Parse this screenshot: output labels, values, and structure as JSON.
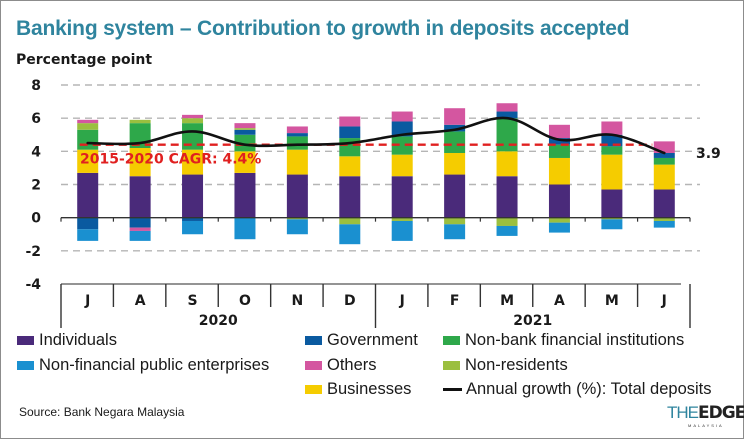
{
  "header": {
    "title": "Banking system – Contribution to growth in deposits accepted",
    "unit_label": "Percentage point"
  },
  "chart_data": {
    "type": "bar",
    "stacked": true,
    "title": "Banking system – Contribution to growth in deposits accepted",
    "ylabel": "Percentage point",
    "xlabel": "",
    "ylim": [
      -4,
      8
    ],
    "yticks": [
      "8",
      "6",
      "4",
      "2",
      "0",
      "-2",
      "-4"
    ],
    "ytick_values": [
      8,
      6,
      4,
      2,
      0,
      -2,
      -4
    ],
    "grid": true,
    "categories": [
      "J",
      "A",
      "S",
      "O",
      "N",
      "D",
      "J",
      "F",
      "M",
      "A",
      "M",
      "J"
    ],
    "year_groups": [
      {
        "label": "2020",
        "span": 6
      },
      {
        "label": "2021",
        "span": 6
      }
    ],
    "series": [
      {
        "name": "Individuals",
        "key": "individuals",
        "color": "#4a2a7a",
        "values": [
          2.7,
          2.5,
          2.6,
          2.7,
          2.6,
          2.5,
          2.5,
          2.6,
          2.5,
          2.0,
          1.7,
          1.7
        ]
      },
      {
        "name": "Businesses",
        "key": "businesses",
        "color": "#f5cc00",
        "values": [
          1.4,
          1.7,
          1.5,
          1.3,
          1.5,
          1.2,
          1.3,
          1.3,
          1.5,
          1.6,
          2.1,
          1.5
        ]
      },
      {
        "name": "Non-bank financial institutions",
        "key": "nbfi",
        "color": "#2ea84a",
        "values": [
          1.2,
          1.5,
          1.6,
          1.0,
          0.8,
          1.1,
          1.1,
          1.3,
          2.0,
          0.8,
          0.5,
          0.4
        ]
      },
      {
        "name": "Government",
        "key": "government",
        "color": "#0a5aa0",
        "values": [
          -0.7,
          -0.6,
          -0.2,
          0.3,
          0.2,
          0.7,
          0.9,
          0.4,
          0.4,
          0.4,
          0.7,
          0.3
        ]
      },
      {
        "name": "Non-residents",
        "key": "nonresidents",
        "color": "#9bbf3f",
        "values": [
          0.4,
          0.2,
          0.3,
          0.1,
          -0.1,
          -0.4,
          -0.2,
          -0.4,
          -0.5,
          -0.3,
          -0.1,
          -0.2
        ]
      },
      {
        "name": "Others",
        "key": "others",
        "color": "#d456a0",
        "values": [
          0.2,
          -0.2,
          0.2,
          0.3,
          0.4,
          0.6,
          0.6,
          1.0,
          0.5,
          0.8,
          0.8,
          0.7
        ]
      },
      {
        "name": "Non-financial public enterprises",
        "key": "nfpe",
        "color": "#1a90d0",
        "values": [
          -0.7,
          -0.6,
          -0.8,
          -1.3,
          -0.9,
          -1.2,
          -1.2,
          -0.9,
          -0.6,
          -0.6,
          -0.6,
          -0.4
        ]
      }
    ],
    "line_series": {
      "name": "Annual growth (%): Total deposits",
      "color": "#111111",
      "values": [
        4.5,
        4.5,
        5.2,
        4.4,
        4.4,
        4.5,
        5.0,
        5.3,
        6.0,
        4.7,
        5.0,
        3.9
      ]
    },
    "reference_line": {
      "label": "2015-2020 CAGR: 4.4%",
      "value": 4.4,
      "color": "#e02020",
      "style": "dashed"
    },
    "end_label": "3.9",
    "legend_position": "bottom"
  },
  "legend": {
    "items": [
      {
        "label": "Individuals",
        "color": "#4a2a7a",
        "kind": "box"
      },
      {
        "label": "Government",
        "color": "#0a5aa0",
        "kind": "box"
      },
      {
        "label": "Non-bank financial institutions",
        "color": "#2ea84a",
        "kind": "box"
      },
      {
        "label": "Non-financial public enterprises",
        "color": "#1a90d0",
        "kind": "box"
      },
      {
        "label": "Others",
        "color": "#d456a0",
        "kind": "box"
      },
      {
        "label": "Non-residents",
        "color": "#9bbf3f",
        "kind": "box"
      },
      {
        "label": "Businesses",
        "color": "#f5cc00",
        "kind": "box"
      },
      {
        "label": "Annual growth (%): Total deposits",
        "color": "#111111",
        "kind": "line"
      }
    ]
  },
  "footer": {
    "source": "Source: Bank Negara Malaysia",
    "logo_the": "THE",
    "logo_edge": "EDGE",
    "logo_sub": "MALAYSIA"
  }
}
